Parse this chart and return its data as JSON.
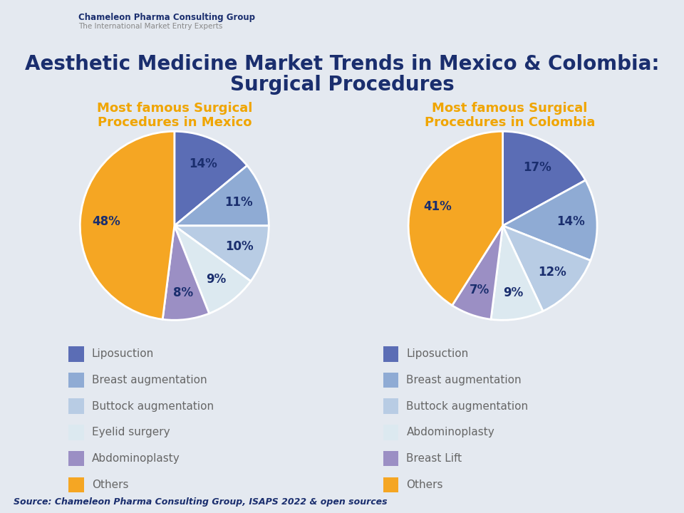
{
  "title_line1": "Aesthetic Medicine Market Trends in Mexico & Colombia:",
  "title_line2": "Surgical Procedures",
  "title_color": "#1a2e6e",
  "title_fontsize": 20,
  "mexico_title": "Most famous Surgical\nProcedures in Mexico",
  "colombia_title": "Most famous Surgical\nProcedures in Colombia",
  "subtitle_color": "#f0a500",
  "subtitle_fontsize": 13,
  "mexico_values": [
    14,
    11,
    10,
    9,
    8,
    48
  ],
  "colombia_values": [
    17,
    14,
    12,
    9,
    7,
    41
  ],
  "mexico_labels": [
    "14%",
    "11%",
    "10%",
    "9%",
    "8%",
    "48%"
  ],
  "colombia_labels": [
    "17%",
    "14%",
    "12%",
    "9%",
    "7%",
    "41%"
  ],
  "colors": [
    "#5b6db5",
    "#8fabd4",
    "#b8cce4",
    "#dce9f0",
    "#9b8fc4",
    "#f5a623"
  ],
  "mexico_legend_labels": [
    "Liposuction",
    "Breast augmentation",
    "Buttock augmentation",
    "Eyelid surgery",
    "Abdominoplasty",
    "Others"
  ],
  "colombia_legend_labels": [
    "Liposuction",
    "Breast augmentation",
    "Buttock augmentation",
    "Abdominoplasty",
    "Breast Lift",
    "Others"
  ],
  "legend_colors": [
    "#5b6db5",
    "#8fabd4",
    "#b8cce4",
    "#dce9f0",
    "#9b8fc4",
    "#f5a623"
  ],
  "legend_fontsize": 11,
  "bg_color": "#e4e9f0",
  "label_fontsize": 12,
  "label_color": "#1a2e6e",
  "source_text": "Source: Chameleon Pharma Consulting Group, ISAPS 2022 & open sources",
  "source_fontsize": 9,
  "source_color": "#1a2e6e"
}
